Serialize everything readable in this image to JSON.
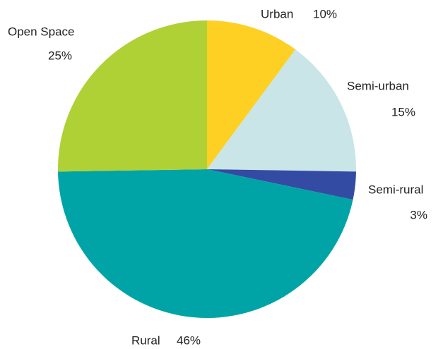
{
  "chart_data": {
    "type": "pie",
    "categories": [
      "Urban",
      "Semi-urban",
      "Semi-rural",
      "Rural",
      "Open Space"
    ],
    "values": [
      10,
      15,
      3,
      46,
      25
    ],
    "value_labels": [
      "10%",
      "15%",
      "3%",
      "46%",
      "25%"
    ],
    "colors": [
      "#fdd023",
      "#c9e5e8",
      "#344ba3",
      "#00a4a6",
      "#afd136"
    ]
  }
}
